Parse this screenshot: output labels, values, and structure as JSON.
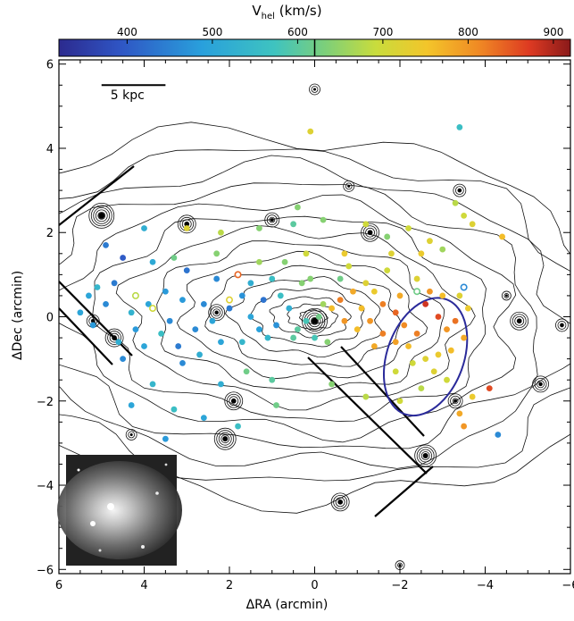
{
  "chart_data": {
    "type": "scatter",
    "colorbar": {
      "title_main": "V",
      "title_sub": "hel",
      "title_unit": "(km/s)",
      "ticks": [
        400,
        500,
        600,
        700,
        800,
        900
      ],
      "range": [
        320,
        920
      ]
    },
    "xlabel": "ΔRA (arcmin)",
    "ylabel": "ΔDec (arcmin)",
    "xlim": [
      -6,
      6
    ],
    "ylim": [
      -6.1,
      6.1
    ],
    "xticks": [
      "-6",
      "-4",
      "-2",
      "0",
      "2",
      "4",
      "6"
    ],
    "yticks": [
      "-6",
      "-4",
      "-2",
      "0",
      "2",
      "4",
      "6"
    ],
    "x_reversed": true,
    "scale_bar": {
      "label": "5 kpc",
      "x_start": 5.0,
      "x_end": 3.5,
      "y": 5.5
    },
    "ellipse": {
      "cx": 2.6,
      "cy": -0.95,
      "rx": 0.9,
      "ry": 1.45,
      "angle_deg": 20,
      "color": "#2a2a9a"
    },
    "points": [
      [
        0.3,
        0.8,
        640
      ],
      [
        0.1,
        0.9,
        640
      ],
      [
        -0.6,
        0.9,
        620
      ],
      [
        -1.2,
        0.8,
        720
      ],
      [
        -1.7,
        1.1,
        700
      ],
      [
        -2.4,
        0.9,
        720
      ],
      [
        1.0,
        0.9,
        560
      ],
      [
        1.5,
        0.8,
        520
      ],
      [
        2.3,
        0.9,
        460
      ],
      [
        3.0,
        1.1,
        430
      ],
      [
        3.8,
        1.3,
        510
      ],
      [
        4.5,
        1.4,
        400
      ],
      [
        5.1,
        0.7,
        540
      ],
      [
        4.9,
        0.3,
        460
      ],
      [
        3.5,
        0.6,
        480
      ],
      [
        3.9,
        0.3,
        500
      ],
      [
        4.3,
        0.1,
        530
      ],
      [
        4.2,
        -0.3,
        480
      ],
      [
        3.6,
        -0.4,
        560
      ],
      [
        3.2,
        -0.7,
        440
      ],
      [
        2.8,
        -0.3,
        460
      ],
      [
        2.4,
        -0.1,
        500
      ],
      [
        2.0,
        0.2,
        440
      ],
      [
        1.7,
        0.5,
        470
      ],
      [
        1.2,
        0.4,
        430
      ],
      [
        0.8,
        0.5,
        560
      ],
      [
        0.6,
        0.2,
        520
      ],
      [
        0.9,
        -0.2,
        470
      ],
      [
        1.3,
        -0.3,
        490
      ],
      [
        1.7,
        -0.6,
        540
      ],
      [
        2.2,
        -0.6,
        500
      ],
      [
        2.7,
        -0.9,
        520
      ],
      [
        3.1,
        -1.1,
        460
      ],
      [
        0.4,
        -0.3,
        600
      ],
      [
        0.0,
        -0.5,
        580
      ],
      [
        -0.3,
        -0.6,
        640
      ],
      [
        -0.6,
        0.4,
        820
      ],
      [
        -0.9,
        0.6,
        780
      ],
      [
        -1.1,
        0.2,
        760
      ],
      [
        -1.3,
        -0.1,
        800
      ],
      [
        -1.6,
        0.3,
        820
      ],
      [
        -1.9,
        0.1,
        840
      ],
      [
        -2.1,
        -0.2,
        810
      ],
      [
        -2.4,
        -0.4,
        820
      ],
      [
        -2.6,
        0.3,
        880
      ],
      [
        -2.9,
        0.0,
        860
      ],
      [
        -3.1,
        -0.3,
        800
      ],
      [
        -3.3,
        -0.1,
        830
      ],
      [
        -3.5,
        -0.5,
        780
      ],
      [
        -3.2,
        -0.8,
        760
      ],
      [
        -2.9,
        -0.9,
        740
      ],
      [
        -2.6,
        -1.0,
        720
      ],
      [
        -2.3,
        -1.1,
        700
      ],
      [
        -2.2,
        -0.7,
        760
      ],
      [
        -1.9,
        -0.6,
        790
      ],
      [
        -1.6,
        -0.4,
        820
      ],
      [
        -1.4,
        -0.7,
        780
      ],
      [
        -1.0,
        -0.3,
        760
      ],
      [
        -0.7,
        -0.1,
        800
      ],
      [
        -0.4,
        0.2,
        760
      ],
      [
        -2.0,
        0.5,
        780
      ],
      [
        -2.7,
        0.6,
        800
      ],
      [
        -3.0,
        0.5,
        760
      ],
      [
        -1.4,
        0.6,
        740
      ],
      [
        -3.6,
        0.2,
        740
      ],
      [
        -3.4,
        0.5,
        720
      ],
      [
        -2.8,
        -1.3,
        720
      ],
      [
        -3.1,
        -1.5,
        700
      ],
      [
        -2.5,
        -1.7,
        680
      ],
      [
        -3.7,
        -1.9,
        740
      ],
      [
        -3.4,
        -2.3,
        780
      ],
      [
        -3.5,
        -2.6,
        800
      ],
      [
        -4.1,
        -1.7,
        860
      ],
      [
        -4.4,
        1.9,
        760
      ],
      [
        -3.7,
        2.2,
        720
      ],
      [
        -3.3,
        2.7,
        680
      ],
      [
        -2.2,
        2.1,
        700
      ],
      [
        -2.7,
        1.8,
        720
      ],
      [
        -3.0,
        1.6,
        660
      ],
      [
        -1.7,
        1.9,
        640
      ],
      [
        -1.2,
        2.2,
        700
      ],
      [
        -0.2,
        2.3,
        640
      ],
      [
        0.5,
        2.2,
        600
      ],
      [
        1.3,
        2.1,
        640
      ],
      [
        2.2,
        2.0,
        680
      ],
      [
        3.0,
        2.1,
        720
      ],
      [
        4.0,
        2.1,
        520
      ],
      [
        2.3,
        1.5,
        640
      ],
      [
        3.3,
        1.4,
        620
      ],
      [
        1.3,
        1.3,
        660
      ],
      [
        0.2,
        1.5,
        700
      ],
      [
        -0.7,
        1.5,
        740
      ],
      [
        -1.8,
        1.5,
        720
      ],
      [
        -2.5,
        1.5,
        740
      ],
      [
        -0.8,
        1.2,
        700
      ],
      [
        0.7,
        1.3,
        640
      ],
      [
        -3.4,
        4.5,
        560
      ],
      [
        0.1,
        4.4,
        720
      ],
      [
        0.4,
        2.6,
        640
      ],
      [
        -3.5,
        2.4,
        700
      ],
      [
        1.0,
        -1.5,
        600
      ],
      [
        1.6,
        -1.3,
        620
      ],
      [
        2.2,
        -1.6,
        520
      ],
      [
        2.6,
        -2.4,
        500
      ],
      [
        3.3,
        -2.2,
        560
      ],
      [
        3.5,
        -2.9,
        480
      ],
      [
        4.3,
        -2.1,
        500
      ],
      [
        3.8,
        -1.6,
        540
      ],
      [
        4.5,
        -1.0,
        460
      ],
      [
        4.6,
        -0.6,
        520
      ],
      [
        5.2,
        -0.2,
        480
      ],
      [
        5.5,
        0.1,
        500
      ],
      [
        1.8,
        -2.6,
        560
      ],
      [
        0.9,
        -2.1,
        620
      ],
      [
        -0.4,
        -1.6,
        640
      ],
      [
        -1.2,
        -1.9,
        680
      ],
      [
        -1.9,
        -1.3,
        700
      ],
      [
        -2.0,
        -2.0,
        700
      ],
      [
        -4.3,
        -2.8,
        460
      ],
      [
        4.9,
        1.7,
        440
      ],
      [
        -0.1,
        0.0,
        620
      ],
      [
        0.2,
        -0.1,
        580
      ],
      [
        -0.2,
        0.3,
        660
      ],
      [
        0.5,
        -0.5,
        600
      ],
      [
        1.1,
        -0.5,
        540
      ],
      [
        1.5,
        0.0,
        500
      ],
      [
        2.6,
        0.3,
        460
      ],
      [
        3.1,
        0.4,
        480
      ],
      [
        3.4,
        -0.1,
        460
      ],
      [
        4.0,
        -0.7,
        500
      ],
      [
        4.7,
        0.8,
        440
      ],
      [
        5.3,
        0.5,
        500
      ]
    ],
    "open_points": [
      [
        -2.4,
        0.6,
        620
      ],
      [
        -3.5,
        0.7,
        460
      ],
      [
        1.8,
        1.0,
        840
      ],
      [
        2.0,
        0.4,
        720
      ],
      [
        4.2,
        0.5,
        680
      ],
      [
        3.8,
        0.2,
        700
      ]
    ]
  }
}
